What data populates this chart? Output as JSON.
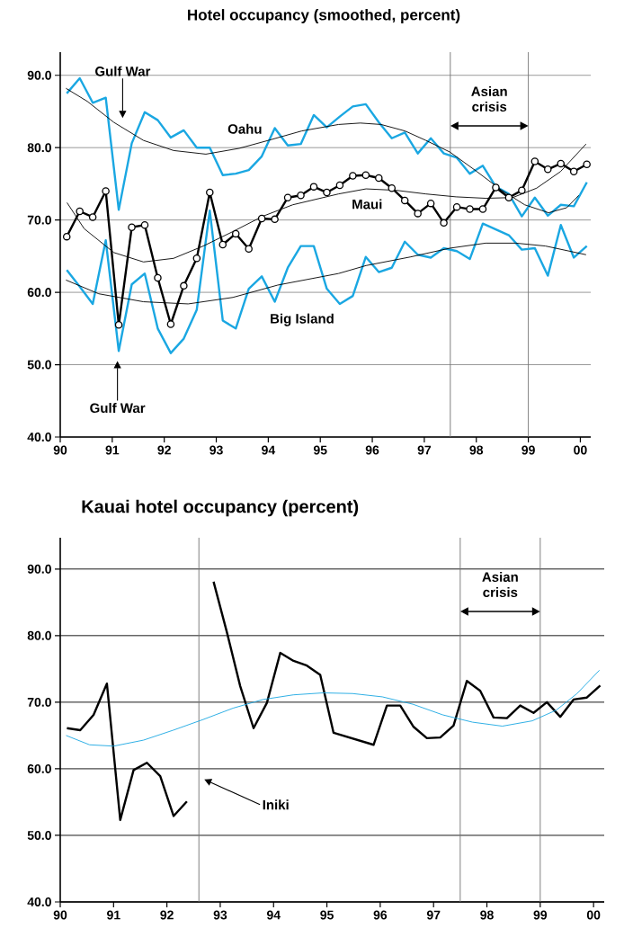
{
  "chart_data": [
    {
      "type": "line",
      "title": "Hotel occupancy (smoothed, percent)",
      "x": [
        1990.125,
        1990.375,
        1990.625,
        1990.875,
        1991.125,
        1991.375,
        1991.625,
        1991.875,
        1992.125,
        1992.375,
        1992.625,
        1992.875,
        1993.125,
        1993.375,
        1993.625,
        1993.875,
        1994.125,
        1994.375,
        1994.625,
        1994.875,
        1995.125,
        1995.375,
        1995.625,
        1995.875,
        1996.125,
        1996.375,
        1996.625,
        1996.875,
        1997.125,
        1997.375,
        1997.625,
        1997.875,
        1998.125,
        1998.375,
        1998.625,
        1998.875,
        1999.125,
        1999.375,
        1999.625,
        1999.875,
        2000.125
      ],
      "series": [
        {
          "name": "Oahu",
          "color": "#1aa7e2",
          "values": [
            87.5,
            89.6,
            86.2,
            86.9,
            71.4,
            80.6,
            84.9,
            83.8,
            81.4,
            82.4,
            80.0,
            80.0,
            76.2,
            76.4,
            76.9,
            78.8,
            82.7,
            80.3,
            80.5,
            84.5,
            82.8,
            84.3,
            85.7,
            86.0,
            83.5,
            81.3,
            82.1,
            79.2,
            81.3,
            79.2,
            78.6,
            76.4,
            77.5,
            74.6,
            73.6,
            70.5,
            73.1,
            70.6,
            72.1,
            71.9,
            75.2
          ]
        },
        {
          "name": "Maui",
          "color": "#000000",
          "marker": "circle",
          "values": [
            67.7,
            71.2,
            70.4,
            74.0,
            55.5,
            69.0,
            69.3,
            62.0,
            55.6,
            60.9,
            64.7,
            73.8,
            66.6,
            68.1,
            66.0,
            70.2,
            70.1,
            73.1,
            73.4,
            74.6,
            73.8,
            74.8,
            76.1,
            76.2,
            75.8,
            74.4,
            72.7,
            70.9,
            72.3,
            69.6,
            71.8,
            71.5,
            71.5,
            74.5,
            73.1,
            74.1,
            78.1,
            77.0,
            77.8,
            76.7,
            77.7
          ]
        },
        {
          "name": "Big Island",
          "color": "#1aa7e2",
          "values": [
            63.1,
            60.8,
            58.4,
            67.2,
            51.9,
            61.1,
            62.6,
            55.0,
            51.6,
            53.6,
            57.6,
            71.3,
            56.1,
            55.0,
            60.5,
            62.2,
            58.7,
            63.4,
            66.4,
            66.4,
            60.5,
            58.4,
            59.5,
            64.9,
            62.8,
            63.4,
            67.0,
            65.2,
            64.8,
            66.1,
            65.7,
            64.6,
            69.5,
            68.7,
            67.9,
            65.9,
            66.1,
            62.3,
            69.3,
            64.8,
            66.4
          ]
        },
        {
          "type": "line",
          "color": "#000000",
          "x": [
            1990.11,
            1990.52,
            1991.03,
            1991.6,
            1992.18,
            1992.8,
            1993.44,
            1994.0,
            1994.64,
            1995.35,
            1995.77,
            1996.17,
            1996.63,
            1997.03,
            1997.49,
            1998.01,
            1998.47,
            1998.93,
            1999.39,
            1999.74,
            1999.97
          ],
          "values": [
            88.2,
            86.4,
            83.5,
            81.0,
            79.6,
            79.1,
            79.9,
            81.0,
            82.3,
            83.2,
            83.4,
            83.2,
            82.3,
            81.0,
            79.4,
            76.7,
            74.2,
            72.1,
            71.0,
            71.7,
            73.4
          ]
        },
        {
          "type": "line",
          "color": "#000000",
          "x": [
            1990.13,
            1990.46,
            1991.03,
            1991.6,
            1992.18,
            1992.75,
            1993.32,
            1993.89,
            1994.47,
            1995.35,
            1995.88,
            1996.46,
            1997.03,
            1997.61,
            1998.18,
            1998.7,
            1999.16,
            1999.62,
            2000.11
          ],
          "values": [
            72.4,
            68.8,
            65.5,
            64.2,
            64.7,
            66.4,
            68.4,
            70.5,
            72.1,
            73.6,
            74.3,
            74.1,
            73.6,
            73.2,
            73.0,
            73.1,
            74.4,
            76.7,
            80.5
          ]
        },
        {
          "type": "line",
          "color": "#000000",
          "x": [
            1990.11,
            1990.74,
            1991.6,
            1992.46,
            1993.32,
            1994.18,
            1995.35,
            1995.88,
            1996.74,
            1997.49,
            1998.18,
            1998.76,
            1999.33,
            2000.11
          ],
          "values": [
            61.7,
            59.8,
            58.7,
            58.4,
            59.3,
            61.0,
            62.6,
            63.7,
            64.9,
            66.1,
            66.8,
            66.8,
            66.4,
            65.2
          ]
        }
      ],
      "xlim": [
        1990,
        2000.2
      ],
      "ylim": [
        40,
        93.2
      ],
      "xticks": [
        {
          "value": 1990,
          "label": "90"
        },
        {
          "value": 1991,
          "label": "91"
        },
        {
          "value": 1992,
          "label": "92"
        },
        {
          "value": 1993,
          "label": "93"
        },
        {
          "value": 1994,
          "label": "94"
        },
        {
          "value": 1995,
          "label": "95"
        },
        {
          "value": 1996,
          "label": "96"
        },
        {
          "value": 1997,
          "label": "97"
        },
        {
          "value": 1998,
          "label": "98"
        },
        {
          "value": 1999,
          "label": "99"
        },
        {
          "value": 2000,
          "label": "00"
        }
      ],
      "yticks": [
        {
          "value": 40,
          "label": "40.0"
        },
        {
          "value": 50,
          "label": "50.0"
        },
        {
          "value": 60,
          "label": "60.0"
        },
        {
          "value": 70,
          "label": "70.0"
        },
        {
          "value": 80,
          "label": "80.0"
        },
        {
          "value": 90,
          "label": "90.0"
        }
      ],
      "grid": "y",
      "ref_lines": [
        {
          "axis": "x",
          "value": 1997.5
        },
        {
          "axis": "x",
          "value": 1999
        }
      ],
      "annotations": [
        "Gulf War",
        "Gulf War",
        "Asian crisis"
      ]
    },
    {
      "type": "line",
      "title": "Kauai hotel occupancy (percent)",
      "series": [
        {
          "color": "#000000",
          "x": [
            1990.125,
            1990.375,
            1990.625,
            1990.875,
            1991.125,
            1991.375,
            1991.625,
            1991.875,
            1992.125,
            1992.375,
            1992.625,
            1992.875,
            1993.125,
            1993.375,
            1993.625,
            1993.875,
            1994.125,
            1994.375,
            1994.625,
            1994.875,
            1995.125,
            1995.875,
            1996.125,
            1996.375,
            1996.625,
            1996.875,
            1997.125,
            1997.375,
            1997.625,
            1997.875,
            1998.125,
            1998.375,
            1998.625,
            1998.875,
            1999.125,
            1999.375,
            1999.625,
            1999.875,
            2000.125
          ],
          "values": [
            66.1,
            65.8,
            68.1,
            72.8,
            52.3,
            59.8,
            60.9,
            58.9,
            52.9,
            55.1,
            null,
            88.1,
            80.5,
            72.4,
            66.1,
            69.9,
            77.4,
            76.2,
            75.5,
            74.1,
            65.4,
            63.6,
            69.5,
            69.5,
            66.3,
            64.6,
            64.7,
            66.5,
            73.2,
            71.7,
            67.7,
            67.6,
            69.5,
            68.4,
            70.0,
            67.8,
            70.4,
            70.7,
            72.5
          ]
        },
        {
          "type": "line",
          "color": "#1aa7e2",
          "x": [
            1990.11,
            1990.55,
            1991.0,
            1991.56,
            1992.12,
            1992.68,
            1993.24,
            1993.8,
            1994.37,
            1994.93,
            1995.48,
            1996.04,
            1996.61,
            1997.17,
            1997.73,
            1998.29,
            1998.85,
            1999.3,
            1999.69,
            2000.11
          ],
          "values": [
            65.0,
            63.6,
            63.4,
            64.3,
            65.8,
            67.4,
            69.1,
            70.4,
            71.1,
            71.4,
            71.3,
            70.8,
            69.7,
            68.1,
            67.0,
            66.4,
            67.2,
            68.8,
            71.3,
            74.8
          ]
        }
      ],
      "xlim": [
        1990,
        2000.2
      ],
      "ylim": [
        40,
        94.7
      ],
      "xticks": [
        {
          "value": 1990,
          "label": "90"
        },
        {
          "value": 1991,
          "label": "91"
        },
        {
          "value": 1992,
          "label": "92"
        },
        {
          "value": 1993,
          "label": "93"
        },
        {
          "value": 1994,
          "label": "94"
        },
        {
          "value": 1995,
          "label": "95"
        },
        {
          "value": 1996,
          "label": "96"
        },
        {
          "value": 1997,
          "label": "97"
        },
        {
          "value": 1998,
          "label": "98"
        },
        {
          "value": 1999,
          "label": "99"
        },
        {
          "value": 2000,
          "label": "00"
        }
      ],
      "yticks": [
        {
          "value": 40,
          "label": "40.0"
        },
        {
          "value": 50,
          "label": "50.0"
        },
        {
          "value": 60,
          "label": "60.0"
        },
        {
          "value": 70,
          "label": "70.0"
        },
        {
          "value": 80,
          "label": "80.0"
        },
        {
          "value": 90,
          "label": "90.0"
        }
      ],
      "grid": "y",
      "ref_lines": [
        {
          "axis": "x",
          "value": 1992.6
        },
        {
          "axis": "x",
          "value": 1997.5
        },
        {
          "axis": "x",
          "value": 1999
        }
      ],
      "annotations": [
        "Asian crisis",
        "Iniki"
      ]
    }
  ]
}
